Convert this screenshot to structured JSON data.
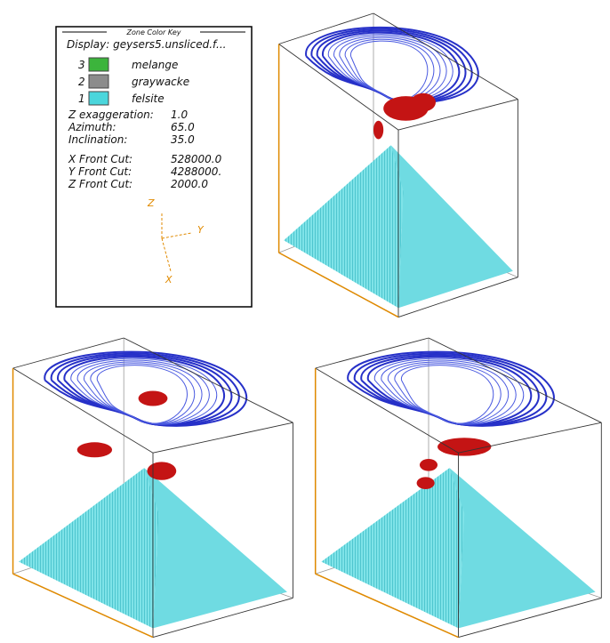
{
  "legend": {
    "title": "Zone Color Key",
    "display": "Display: geysers5.unsliced.f...",
    "zones": [
      {
        "number": "3",
        "name": "melange",
        "color": "#3cb43c"
      },
      {
        "number": "2",
        "name": "graywacke",
        "color": "#8c8c8c"
      },
      {
        "number": "1",
        "name": "felsite",
        "color": "#4ad6dc"
      }
    ],
    "params": [
      [
        "Z exaggeration:",
        "1.0"
      ],
      [
        "Azimuth:",
        "65.0"
      ],
      [
        "Inclination:",
        "35.0"
      ],
      [
        "X Front Cut:",
        "528000.0"
      ],
      [
        "Y Front Cut:",
        "4288000."
      ],
      [
        "Z Front Cut:",
        "2000.0"
      ]
    ],
    "axes": {
      "z": "Z",
      "y": "Y",
      "x": "X"
    }
  }
}
